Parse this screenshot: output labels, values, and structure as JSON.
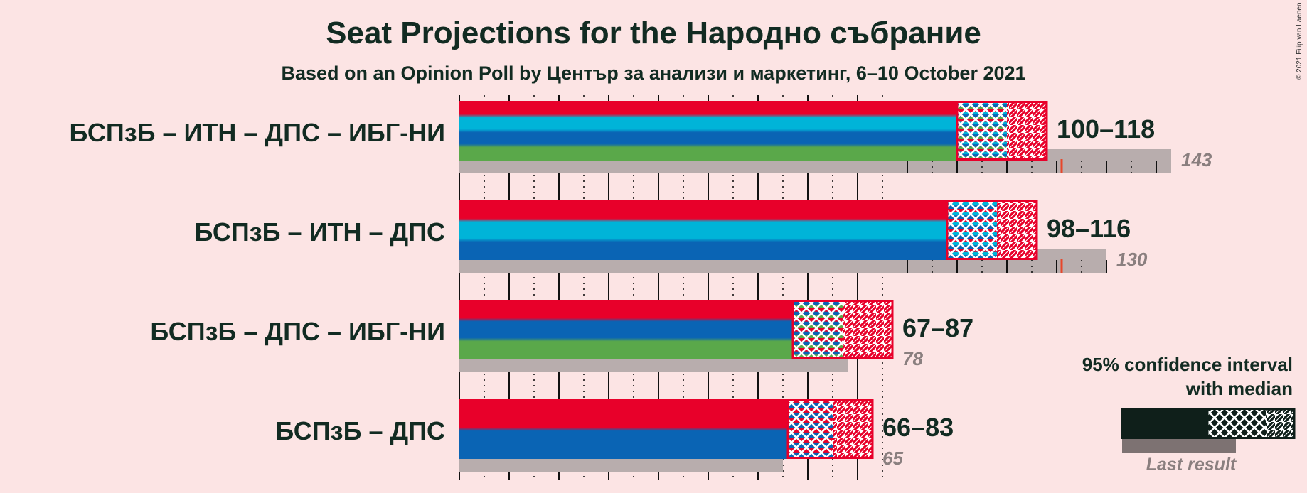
{
  "title": "Seat Projections for the Народно събрание",
  "subtitle": "Based on an Opinion Poll by Център за анализи и маркетинг, 6–10 October 2021",
  "credit": "© 2021 Filip van Laenen",
  "legend": {
    "ci_label_line1": "95% confidence interval",
    "ci_label_line2": "with median",
    "last_result_label": "Last result"
  },
  "colors": {
    "background": "#fce4e4",
    "last_result_bar": "#b8adad",
    "last_result_text": "#8a7f7f",
    "majority_line": "#e8462a",
    "БСПзБ": "#e8002a",
    "ИТН": "#00b4d8",
    "ДПС": "#0a64b4",
    "ИБГ-НИ": "#5aa84a",
    "legend_dark": "#0f1f1a"
  },
  "chart_data": {
    "type": "bar",
    "xlim": [
      0,
      143
    ],
    "majority": 121,
    "categories": [
      "БСПзБ – ИТН – ДПС – ИБГ-НИ",
      "БСПзБ – ИТН – ДПС",
      "БСПзБ – ДПС – ИБГ-НИ",
      "БСПзБ – ДПС"
    ],
    "series": [
      {
        "label": "БСПзБ – ИТН – ДПС – ИБГ-НИ",
        "parties": [
          "БСПзБ",
          "ИТН",
          "ДПС",
          "ИБГ-НИ"
        ],
        "low": 100,
        "median": 110,
        "high": 118,
        "range_label": "100–118",
        "last_result": 143,
        "last_result_label": "143"
      },
      {
        "label": "БСПзБ – ИТН – ДПС",
        "parties": [
          "БСПзБ",
          "ИТН",
          "ДПС"
        ],
        "low": 98,
        "median": 108,
        "high": 116,
        "range_label": "98–116",
        "last_result": 130,
        "last_result_label": "130"
      },
      {
        "label": "БСПзБ – ДПС – ИБГ-НИ",
        "parties": [
          "БСПзБ",
          "ДПС",
          "ИБГ-НИ"
        ],
        "low": 67,
        "median": 77,
        "high": 87,
        "range_label": "67–87",
        "last_result": 78,
        "last_result_label": "78"
      },
      {
        "label": "БСПзБ – ДПС",
        "parties": [
          "БСПзБ",
          "ДПС"
        ],
        "low": 66,
        "median": 75,
        "high": 83,
        "range_label": "66–83",
        "last_result": 65,
        "last_result_label": "65"
      }
    ]
  }
}
